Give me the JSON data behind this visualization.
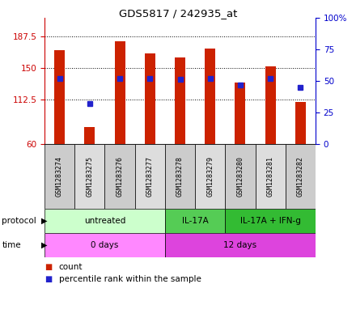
{
  "title": "GDS5817 / 242935_at",
  "samples": [
    "GSM1283274",
    "GSM1283275",
    "GSM1283276",
    "GSM1283277",
    "GSM1283278",
    "GSM1283279",
    "GSM1283280",
    "GSM1283281",
    "GSM1283282"
  ],
  "counts": [
    172,
    80,
    182,
    168,
    163,
    173,
    133,
    152,
    110
  ],
  "percentiles": [
    52,
    32,
    52,
    52,
    51,
    52,
    47,
    52,
    45
  ],
  "ymin": 60,
  "ymax": 210,
  "yticks_left": [
    60,
    112.5,
    150,
    187.5
  ],
  "yticks_right": [
    0,
    25,
    50,
    75,
    100
  ],
  "protocol_groups": [
    {
      "label": "untreated",
      "start": 0,
      "end": 4,
      "color": "#ccffcc"
    },
    {
      "label": "IL-17A",
      "start": 4,
      "end": 6,
      "color": "#55cc55"
    },
    {
      "label": "IL-17A + IFN-g",
      "start": 6,
      "end": 9,
      "color": "#33bb33"
    }
  ],
  "time_groups": [
    {
      "label": "0 days",
      "start": 0,
      "end": 4,
      "color": "#ff88ff"
    },
    {
      "label": "12 days",
      "start": 4,
      "end": 9,
      "color": "#dd44dd"
    }
  ],
  "bar_color": "#cc2200",
  "dot_color": "#2222cc",
  "bar_width": 0.35,
  "left_tick_color": "#cc0000",
  "right_tick_color": "#0000cc",
  "bg_color": "#ffffff",
  "sample_bg": "#cccccc",
  "sample_bg2": "#dddddd"
}
